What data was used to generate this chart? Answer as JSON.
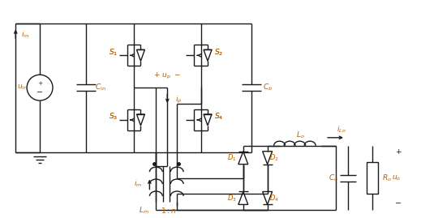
{
  "fig_width": 5.19,
  "fig_height": 2.69,
  "dpi": 100,
  "bg_color": "#ffffff",
  "line_color": "#1a1a1a",
  "label_color": "#b85c00",
  "lw": 1.0
}
